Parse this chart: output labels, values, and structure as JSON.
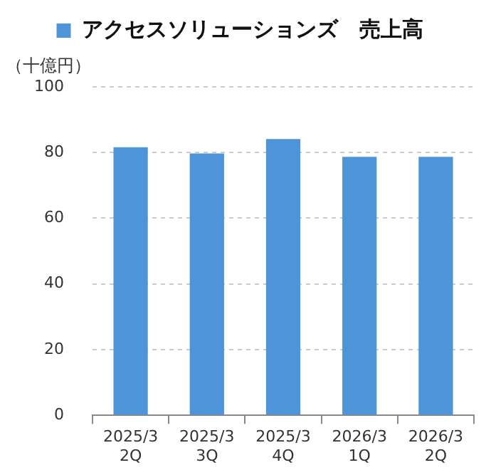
{
  "chart_data": {
    "type": "bar",
    "ylabel": "（十億円）",
    "categories": [
      "2025/3 2Q",
      "2025/3 3Q",
      "2025/3 4Q",
      "2026/3 1Q",
      "2026/3 2Q"
    ],
    "series": [
      {
        "name": "アクセスソリューションズ　売上高",
        "color": "#4e94d8",
        "values": [
          81.6,
          79.7,
          84.1,
          78.7,
          78.7
        ]
      }
    ],
    "ylim": [
      0,
      100
    ],
    "yticks": [
      0,
      20,
      40,
      60,
      80,
      100
    ],
    "grid": "y",
    "legend": "top"
  }
}
